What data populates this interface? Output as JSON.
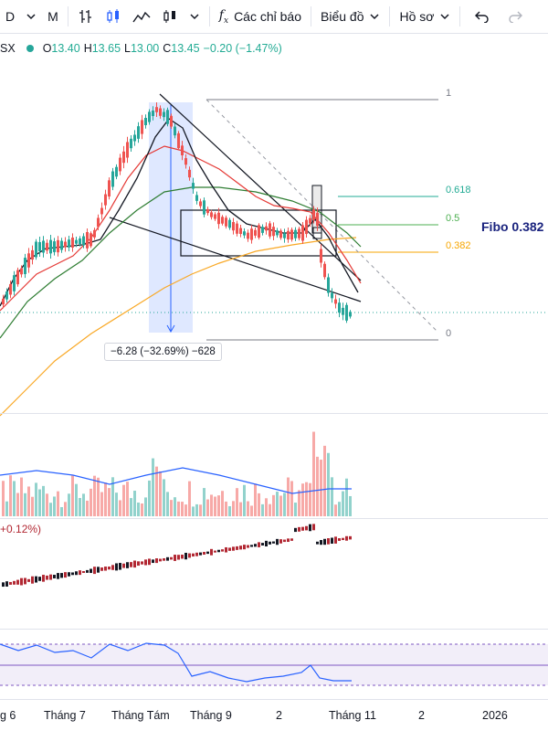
{
  "toolbar": {
    "interval_1": "D",
    "interval_2": "M",
    "indicators_label": "Các chỉ báo",
    "chart_label": "Biểu đồ",
    "profile_label": "Hồ sơ"
  },
  "legend": {
    "symbol": "SX",
    "o_key": "O",
    "o_val": "13.40",
    "h_key": "H",
    "h_val": "13.65",
    "l_key": "L",
    "l_val": "13.00",
    "c_key": "C",
    "c_val": "13.45",
    "change": "−0.20 (−1.47%)"
  },
  "fibonacci": {
    "levels": [
      {
        "ratio": "1",
        "color": "#787b86"
      },
      {
        "ratio": "0.618",
        "color": "#22ab94"
      },
      {
        "ratio": "0.5",
        "color": "#4caf50"
      },
      {
        "ratio": "0.382",
        "color": "#f7a600"
      },
      {
        "ratio": "0",
        "color": "#787b86"
      }
    ],
    "callout": "Fibo 0.382"
  },
  "measure": {
    "text": "−6.28 (−32.69%) −628"
  },
  "indicator": {
    "label": "+0.12%)"
  },
  "x_axis": [
    "g 6",
    "Tháng 7",
    "Tháng Tám",
    "Tháng 9",
    "2",
    "Tháng 11",
    "2",
    "2026"
  ],
  "chart_data": {
    "type": "candlestick",
    "panes": [
      "price",
      "volume",
      "cumulative-indicator",
      "rsi"
    ],
    "last": {
      "open": 13.4,
      "high": 13.65,
      "low": 13.0,
      "close": 13.45,
      "change": -0.2,
      "change_pct": -1.47
    },
    "fib_ratios": [
      1,
      0.618,
      0.5,
      0.382,
      0
    ],
    "drawdown": {
      "abs": -6.28,
      "pct": -32.69,
      "ticks": -628
    },
    "colors": {
      "up": "#26a69a",
      "down": "#ef5350",
      "ma_fast": "#131722",
      "ma_red": "#e53935",
      "ma_green": "#2e7d32",
      "ma_orange": "#f9a825",
      "rsi": "#2962ff"
    }
  }
}
